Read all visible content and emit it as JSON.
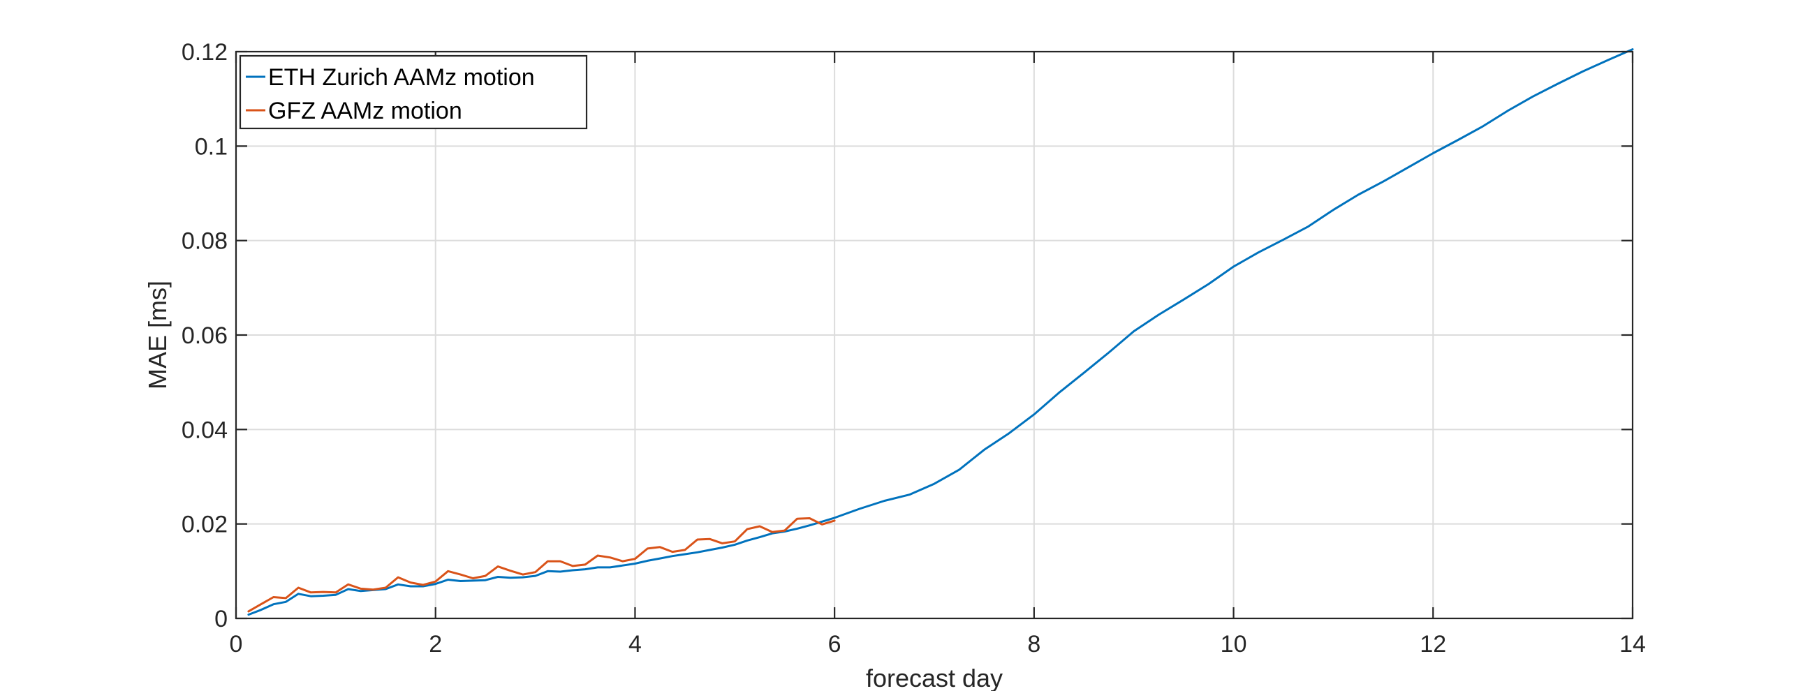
{
  "chart_data": {
    "type": "line",
    "title": "",
    "xlabel": "forecast day",
    "ylabel": "MAE [ms]",
    "xlim": [
      0,
      14
    ],
    "ylim": [
      0,
      0.12
    ],
    "xticks": [
      0,
      2,
      4,
      6,
      8,
      10,
      12,
      14
    ],
    "xtick_labels": [
      "0",
      "2",
      "4",
      "6",
      "8",
      "10",
      "12",
      "14"
    ],
    "yticks": [
      0,
      0.02,
      0.04,
      0.06,
      0.08,
      0.1,
      0.12
    ],
    "ytick_labels": [
      "0",
      "0.02",
      "0.04",
      "0.06",
      "0.08",
      "0.1",
      "0.12"
    ],
    "grid": true,
    "legend_position": "top-left",
    "series": [
      {
        "name": "ETH Zurich AAMz motion",
        "color": "#0072BD",
        "x": [
          0.125,
          0.25,
          0.375,
          0.5,
          0.625,
          0.75,
          0.875,
          1.0,
          1.125,
          1.25,
          1.375,
          1.5,
          1.625,
          1.75,
          1.875,
          2.0,
          2.125,
          2.25,
          2.375,
          2.5,
          2.625,
          2.75,
          2.875,
          3.0,
          3.125,
          3.25,
          3.375,
          3.5,
          3.625,
          3.75,
          3.875,
          4.0,
          4.125,
          4.25,
          4.375,
          4.5,
          4.625,
          4.75,
          4.875,
          5.0,
          5.125,
          5.25,
          5.375,
          5.5,
          5.625,
          5.75,
          5.875,
          6.0,
          6.25,
          6.5,
          6.75,
          7.0,
          7.25,
          7.5,
          7.75,
          8.0,
          8.25,
          8.5,
          8.75,
          9.0,
          9.25,
          9.5,
          9.75,
          10.0,
          10.25,
          10.5,
          10.75,
          11.0,
          11.25,
          11.5,
          11.75,
          12.0,
          12.25,
          12.5,
          12.75,
          13.0,
          13.25,
          13.5,
          13.75,
          14.0
        ],
        "values": [
          0.0008,
          0.0018,
          0.003,
          0.0035,
          0.0052,
          0.0047,
          0.0048,
          0.005,
          0.0062,
          0.0058,
          0.006,
          0.0062,
          0.0072,
          0.0068,
          0.0068,
          0.0073,
          0.0082,
          0.0079,
          0.008,
          0.0081,
          0.0088,
          0.0086,
          0.0087,
          0.009,
          0.01,
          0.0099,
          0.0102,
          0.0104,
          0.0108,
          0.0108,
          0.0112,
          0.0116,
          0.0122,
          0.0127,
          0.0132,
          0.0136,
          0.014,
          0.0145,
          0.015,
          0.0156,
          0.0165,
          0.0172,
          0.018,
          0.0184,
          0.019,
          0.0197,
          0.0205,
          0.0213,
          0.0232,
          0.0249,
          0.0262,
          0.0285,
          0.0315,
          0.0357,
          0.0392,
          0.0432,
          0.0478,
          0.052,
          0.0563,
          0.0608,
          0.0643,
          0.0675,
          0.0708,
          0.0745,
          0.0775,
          0.0802,
          0.083,
          0.0865,
          0.0897,
          0.0925,
          0.0955,
          0.0985,
          0.1013,
          0.1042,
          0.1075,
          0.1105,
          0.1132,
          0.1158,
          0.1182,
          0.1205
        ]
      },
      {
        "name": "GFZ AAMz motion",
        "color": "#D95319",
        "x": [
          0.125,
          0.25,
          0.375,
          0.5,
          0.625,
          0.75,
          0.875,
          1.0,
          1.125,
          1.25,
          1.375,
          1.5,
          1.625,
          1.75,
          1.875,
          2.0,
          2.125,
          2.25,
          2.375,
          2.5,
          2.625,
          2.75,
          2.875,
          3.0,
          3.125,
          3.25,
          3.375,
          3.5,
          3.625,
          3.75,
          3.875,
          4.0,
          4.125,
          4.25,
          4.375,
          4.5,
          4.625,
          4.75,
          4.875,
          5.0,
          5.125,
          5.25,
          5.375,
          5.5,
          5.625,
          5.75,
          5.875,
          6.0
        ],
        "values": [
          0.0015,
          0.003,
          0.0045,
          0.0043,
          0.0065,
          0.0055,
          0.0056,
          0.0055,
          0.0072,
          0.0063,
          0.0061,
          0.0065,
          0.0087,
          0.0076,
          0.0071,
          0.0078,
          0.01,
          0.0093,
          0.0085,
          0.009,
          0.011,
          0.0101,
          0.0093,
          0.0098,
          0.0121,
          0.0121,
          0.0111,
          0.0114,
          0.0133,
          0.0129,
          0.0121,
          0.0126,
          0.0148,
          0.0151,
          0.0141,
          0.0145,
          0.0167,
          0.0168,
          0.0159,
          0.0163,
          0.0189,
          0.0195,
          0.0183,
          0.0186,
          0.0211,
          0.0212,
          0.0199,
          0.0207
        ]
      }
    ]
  }
}
